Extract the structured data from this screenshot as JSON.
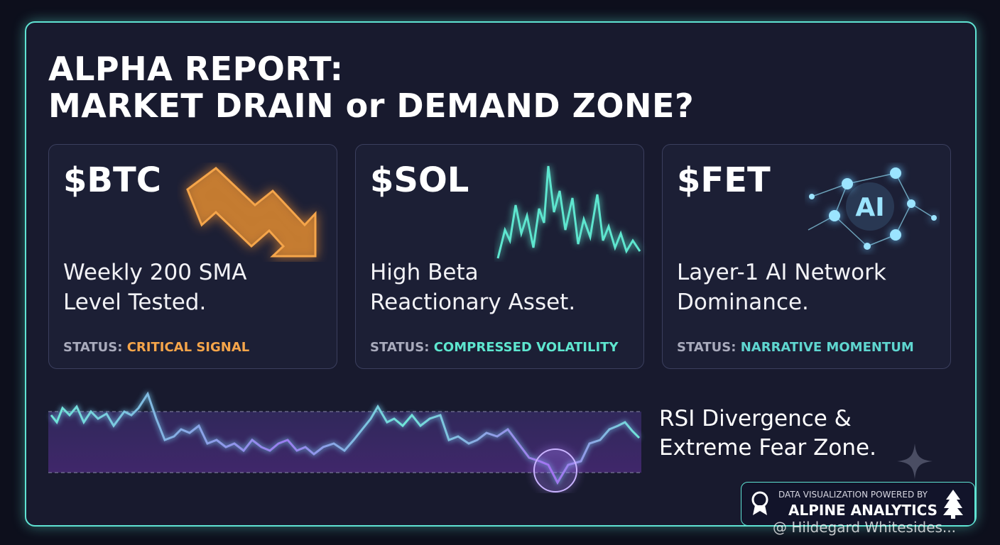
{
  "header": {
    "title_lines": [
      "ALPHA REPORT:",
      "MARKET DRAIN or DEMAND ZONE?"
    ]
  },
  "cards": [
    {
      "ticker": "$BTC",
      "description": [
        "Weekly 200 SMA",
        "Level Tested."
      ],
      "status_label": "STATUS:",
      "status_value": "CRITICAL SIGNAL"
    },
    {
      "ticker": "$SOL",
      "description": [
        "High Beta",
        "Reactionary Asset."
      ],
      "status_label": "STATUS:",
      "status_value": "COMPRESSED VOLATILITY"
    },
    {
      "ticker": "$FET",
      "description": [
        "Layer-1 AI Network",
        "Dominance."
      ],
      "status_label": "STATUS:",
      "status_value": "NARRATIVE MOMENTUM"
    }
  ],
  "ai_icon": "AI",
  "rsi": {
    "caption": [
      "RSI Divergence &",
      "Extreme Fear Zone."
    ]
  },
  "badge": {
    "kicker": "DATA VISUALIZATION POWERED BY",
    "brand": "ALPINE ANALYTICS"
  },
  "watermark": "@ Hildegard Whitesides..."
}
